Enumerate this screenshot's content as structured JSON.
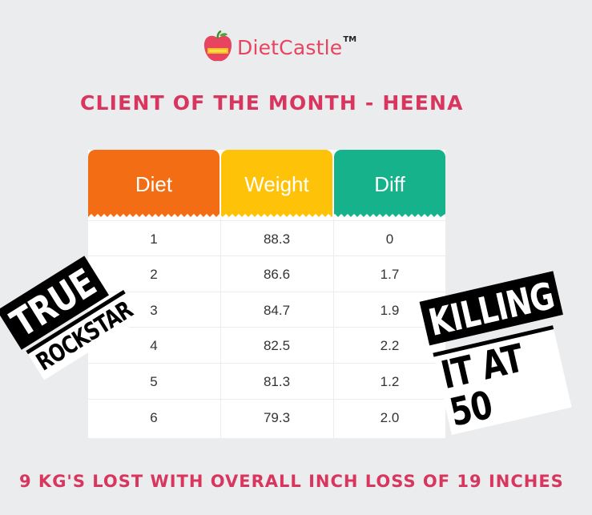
{
  "brand": {
    "name": "DietCastle",
    "trademark": "TM"
  },
  "heading": "CLIENT OF THE MONTH - HEENA",
  "table": {
    "headers": [
      "Diet",
      "Weight",
      "Diff"
    ],
    "rows": [
      [
        "1",
        "88.3",
        "0"
      ],
      [
        "2",
        "86.6",
        "1.7"
      ],
      [
        "3",
        "84.7",
        "1.9"
      ],
      [
        "4",
        "82.5",
        "2.2"
      ],
      [
        "5",
        "81.3",
        "1.2"
      ],
      [
        "6",
        "79.3",
        "2.0"
      ]
    ],
    "header_colors": [
      "#f26d13",
      "#fec309",
      "#16b28c"
    ]
  },
  "sticker_left": {
    "line1": "TRUE",
    "line2": "ROCKSTAR"
  },
  "sticker_right": {
    "line1": "KILLING",
    "line2": "IT AT 50"
  },
  "footer": "9 KG'S LOST WITH OVERALL INCH LOSS OF 19 INCHES",
  "colors": {
    "accent": "#d8365e",
    "background": "#ebecee"
  }
}
